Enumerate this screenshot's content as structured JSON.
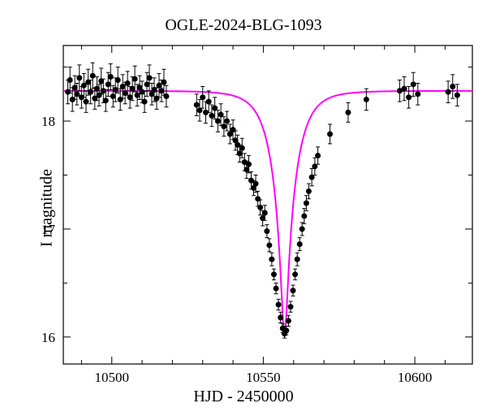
{
  "plot": {
    "type": "scatter",
    "title": "OGLE-2024-BLG-1093",
    "xlabel": "HJD - 2450000",
    "ylabel": "I magnitude",
    "xlim": [
      10484,
      10619
    ],
    "ylim": [
      18.7,
      15.75
    ],
    "yticks_major": [
      16,
      17,
      18
    ],
    "yticks_minor": [
      16.5,
      17.5,
      18.5
    ],
    "xticks_major": [
      10500,
      10550,
      10600
    ],
    "xticks_minor": [
      10490,
      10510,
      10520,
      10530,
      10540,
      10560,
      10570,
      10580,
      10590,
      10610
    ],
    "title_fontsize": 20,
    "label_fontsize": 20,
    "tick_fontsize": 17,
    "background_color": "#ffffff",
    "axis_color": "#000000",
    "model_color": "#ff00ff",
    "marker_color": "#000000",
    "marker_size": 3,
    "model": {
      "baseline": 18.28,
      "peak": 16.02,
      "t0": 10557,
      "tE": 7.5
    },
    "data": [
      {
        "x": 10485.5,
        "y": 18.27,
        "e": 0.11
      },
      {
        "x": 10486.2,
        "y": 18.38,
        "e": 0.12
      },
      {
        "x": 10487.0,
        "y": 18.2,
        "e": 0.11
      },
      {
        "x": 10487.8,
        "y": 18.31,
        "e": 0.11
      },
      {
        "x": 10488.5,
        "y": 18.25,
        "e": 0.1
      },
      {
        "x": 10489.3,
        "y": 18.4,
        "e": 0.12
      },
      {
        "x": 10490.0,
        "y": 18.22,
        "e": 0.1
      },
      {
        "x": 10490.8,
        "y": 18.33,
        "e": 0.11
      },
      {
        "x": 10491.5,
        "y": 18.18,
        "e": 0.1
      },
      {
        "x": 10492.2,
        "y": 18.36,
        "e": 0.12
      },
      {
        "x": 10493.0,
        "y": 18.27,
        "e": 0.11
      },
      {
        "x": 10493.7,
        "y": 18.42,
        "e": 0.12
      },
      {
        "x": 10494.4,
        "y": 18.21,
        "e": 0.1
      },
      {
        "x": 10495.1,
        "y": 18.3,
        "e": 0.11
      },
      {
        "x": 10495.8,
        "y": 18.24,
        "e": 0.1
      },
      {
        "x": 10496.5,
        "y": 18.37,
        "e": 0.12
      },
      {
        "x": 10497.2,
        "y": 18.28,
        "e": 0.11
      },
      {
        "x": 10498.0,
        "y": 18.19,
        "e": 0.1
      },
      {
        "x": 10498.8,
        "y": 18.34,
        "e": 0.11
      },
      {
        "x": 10499.6,
        "y": 18.41,
        "e": 0.12
      },
      {
        "x": 10500.4,
        "y": 18.23,
        "e": 0.1
      },
      {
        "x": 10501.2,
        "y": 18.29,
        "e": 0.11
      },
      {
        "x": 10502.0,
        "y": 18.38,
        "e": 0.12
      },
      {
        "x": 10502.8,
        "y": 18.2,
        "e": 0.1
      },
      {
        "x": 10503.6,
        "y": 18.32,
        "e": 0.11
      },
      {
        "x": 10504.4,
        "y": 18.26,
        "e": 0.1
      },
      {
        "x": 10505.2,
        "y": 18.35,
        "e": 0.11
      },
      {
        "x": 10506.0,
        "y": 18.22,
        "e": 0.1
      },
      {
        "x": 10506.8,
        "y": 18.3,
        "e": 0.11
      },
      {
        "x": 10507.6,
        "y": 18.39,
        "e": 0.12
      },
      {
        "x": 10508.4,
        "y": 18.24,
        "e": 0.1
      },
      {
        "x": 10509.2,
        "y": 18.31,
        "e": 0.11
      },
      {
        "x": 10510.0,
        "y": 18.27,
        "e": 0.1
      },
      {
        "x": 10510.8,
        "y": 18.18,
        "e": 0.1
      },
      {
        "x": 10511.6,
        "y": 18.34,
        "e": 0.11
      },
      {
        "x": 10512.4,
        "y": 18.4,
        "e": 0.12
      },
      {
        "x": 10513.2,
        "y": 18.25,
        "e": 0.1
      },
      {
        "x": 10514.0,
        "y": 18.29,
        "e": 0.11
      },
      {
        "x": 10514.8,
        "y": 18.21,
        "e": 0.1
      },
      {
        "x": 10515.6,
        "y": 18.33,
        "e": 0.11
      },
      {
        "x": 10516.4,
        "y": 18.28,
        "e": 0.1
      },
      {
        "x": 10517.2,
        "y": 18.36,
        "e": 0.12
      },
      {
        "x": 10518.0,
        "y": 18.23,
        "e": 0.1
      },
      {
        "x": 10528.0,
        "y": 18.15,
        "e": 0.1
      },
      {
        "x": 10529.0,
        "y": 18.1,
        "e": 0.1
      },
      {
        "x": 10530.0,
        "y": 18.22,
        "e": 0.1
      },
      {
        "x": 10531.0,
        "y": 18.08,
        "e": 0.1
      },
      {
        "x": 10532.0,
        "y": 18.18,
        "e": 0.1
      },
      {
        "x": 10533.0,
        "y": 18.05,
        "e": 0.1
      },
      {
        "x": 10534.0,
        "y": 18.12,
        "e": 0.1
      },
      {
        "x": 10535.0,
        "y": 18.0,
        "e": 0.1
      },
      {
        "x": 10536.0,
        "y": 18.06,
        "e": 0.1
      },
      {
        "x": 10537.0,
        "y": 17.95,
        "e": 0.09
      },
      {
        "x": 10538.0,
        "y": 18.0,
        "e": 0.09
      },
      {
        "x": 10539.0,
        "y": 17.88,
        "e": 0.09
      },
      {
        "x": 10540.0,
        "y": 17.92,
        "e": 0.09
      },
      {
        "x": 10540.8,
        "y": 17.82,
        "e": 0.09
      },
      {
        "x": 10541.5,
        "y": 17.78,
        "e": 0.09
      },
      {
        "x": 10542.2,
        "y": 17.7,
        "e": 0.08
      },
      {
        "x": 10543.0,
        "y": 17.75,
        "e": 0.09
      },
      {
        "x": 10543.8,
        "y": 17.62,
        "e": 0.08
      },
      {
        "x": 10544.5,
        "y": 17.55,
        "e": 0.08
      },
      {
        "x": 10545.2,
        "y": 17.6,
        "e": 0.08
      },
      {
        "x": 10546.0,
        "y": 17.45,
        "e": 0.08
      },
      {
        "x": 10546.8,
        "y": 17.38,
        "e": 0.07
      },
      {
        "x": 10547.5,
        "y": 17.42,
        "e": 0.08
      },
      {
        "x": 10548.2,
        "y": 17.28,
        "e": 0.07
      },
      {
        "x": 10549.0,
        "y": 17.2,
        "e": 0.07
      },
      {
        "x": 10549.8,
        "y": 17.1,
        "e": 0.07
      },
      {
        "x": 10550.5,
        "y": 17.15,
        "e": 0.07
      },
      {
        "x": 10551.2,
        "y": 16.98,
        "e": 0.06
      },
      {
        "x": 10552.0,
        "y": 16.85,
        "e": 0.06
      },
      {
        "x": 10552.8,
        "y": 16.72,
        "e": 0.06
      },
      {
        "x": 10553.5,
        "y": 16.58,
        "e": 0.05
      },
      {
        "x": 10554.2,
        "y": 16.45,
        "e": 0.05
      },
      {
        "x": 10555.0,
        "y": 16.3,
        "e": 0.05
      },
      {
        "x": 10555.7,
        "y": 16.18,
        "e": 0.05
      },
      {
        "x": 10556.4,
        "y": 16.08,
        "e": 0.04
      },
      {
        "x": 10557.0,
        "y": 16.03,
        "e": 0.04
      },
      {
        "x": 10557.6,
        "y": 16.06,
        "e": 0.04
      },
      {
        "x": 10558.3,
        "y": 16.15,
        "e": 0.05
      },
      {
        "x": 10559.0,
        "y": 16.28,
        "e": 0.05
      },
      {
        "x": 10559.8,
        "y": 16.43,
        "e": 0.05
      },
      {
        "x": 10560.5,
        "y": 16.58,
        "e": 0.05
      },
      {
        "x": 10561.2,
        "y": 16.72,
        "e": 0.06
      },
      {
        "x": 10562.0,
        "y": 16.86,
        "e": 0.06
      },
      {
        "x": 10562.8,
        "y": 17.0,
        "e": 0.06
      },
      {
        "x": 10563.5,
        "y": 17.12,
        "e": 0.07
      },
      {
        "x": 10564.2,
        "y": 17.24,
        "e": 0.07
      },
      {
        "x": 10565.0,
        "y": 17.35,
        "e": 0.07
      },
      {
        "x": 10566.0,
        "y": 17.48,
        "e": 0.08
      },
      {
        "x": 10567.0,
        "y": 17.58,
        "e": 0.08
      },
      {
        "x": 10568.0,
        "y": 17.68,
        "e": 0.08
      },
      {
        "x": 10572.0,
        "y": 17.88,
        "e": 0.09
      },
      {
        "x": 10578.0,
        "y": 18.08,
        "e": 0.09
      },
      {
        "x": 10584.0,
        "y": 18.2,
        "e": 0.1
      },
      {
        "x": 10595.0,
        "y": 18.28,
        "e": 0.1
      },
      {
        "x": 10596.5,
        "y": 18.3,
        "e": 0.11
      },
      {
        "x": 10598.0,
        "y": 18.22,
        "e": 0.1
      },
      {
        "x": 10599.5,
        "y": 18.34,
        "e": 0.11
      },
      {
        "x": 10601.0,
        "y": 18.25,
        "e": 0.1
      },
      {
        "x": 10611.0,
        "y": 18.27,
        "e": 0.1
      },
      {
        "x": 10612.5,
        "y": 18.32,
        "e": 0.11
      },
      {
        "x": 10614.0,
        "y": 18.24,
        "e": 0.1
      }
    ]
  }
}
